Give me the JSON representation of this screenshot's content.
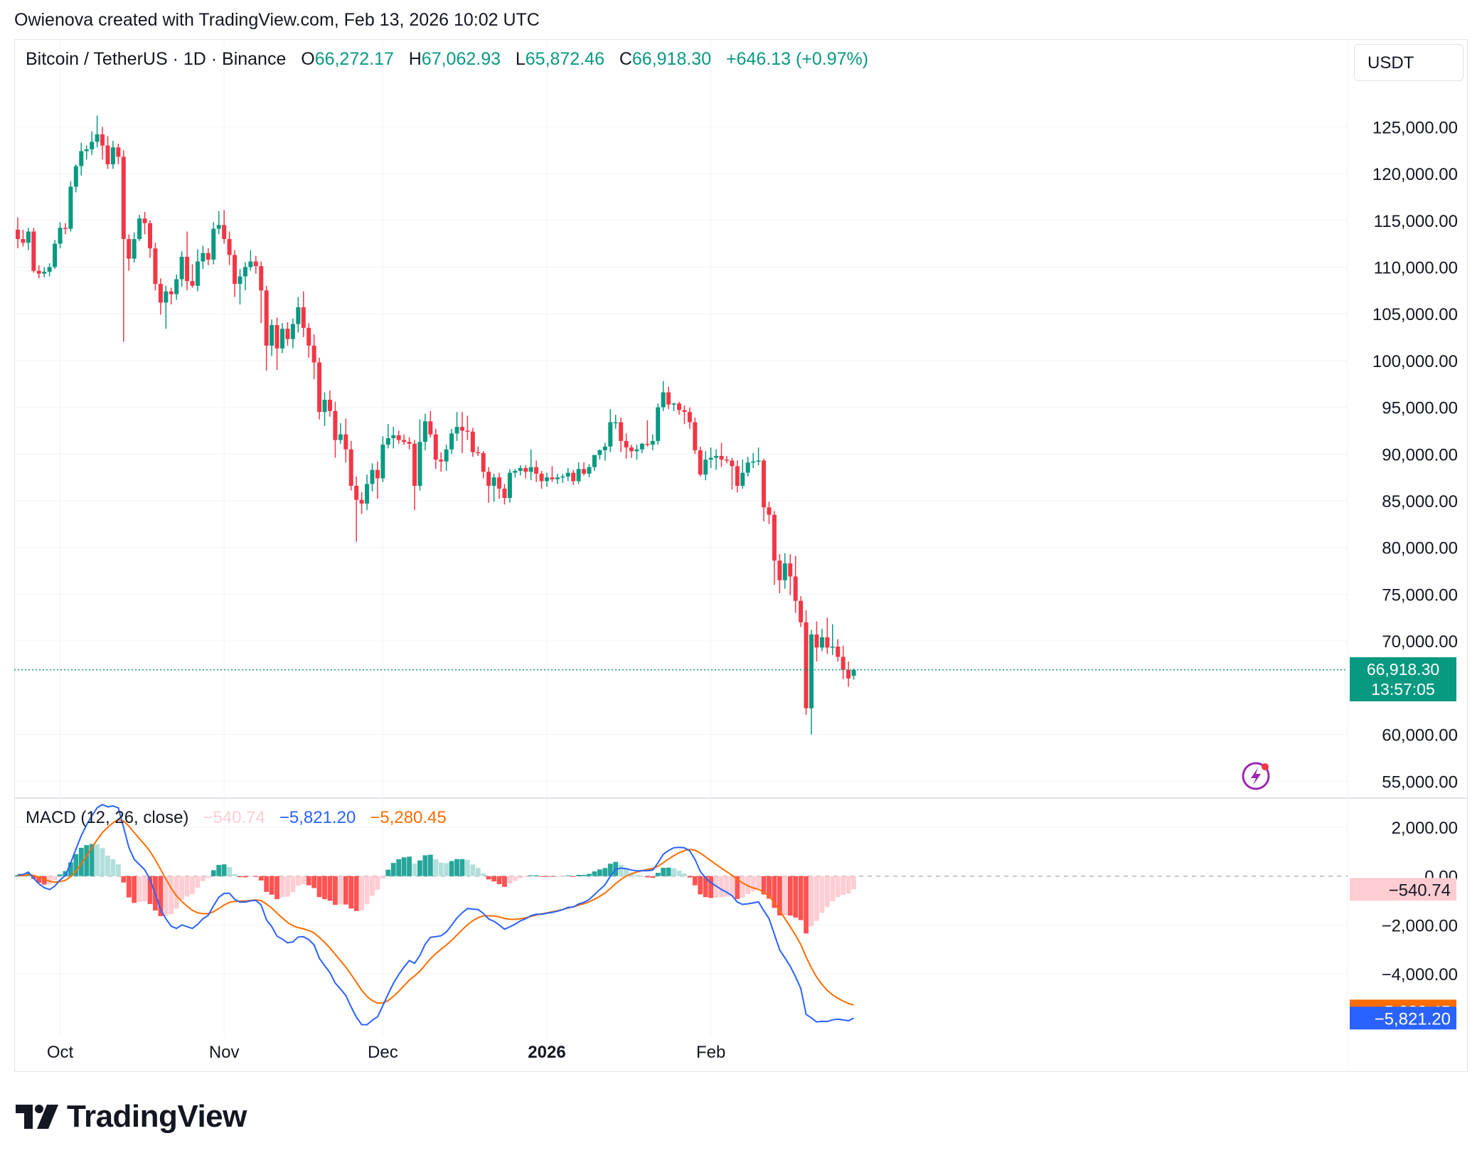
{
  "header": {
    "creator_text": "Owienova created with TradingView.com, Feb 13, 2026 10:02 UTC"
  },
  "symbol": {
    "name": "Bitcoin / TetherUS · 1D · Binance",
    "open_label": "O",
    "open": "66,272.17",
    "high_label": "H",
    "high": "67,062.93",
    "low_label": "L",
    "low": "65,872.46",
    "close_label": "C",
    "close": "66,918.30",
    "change": "+646.13 (+0.97%)"
  },
  "currency_button": "USDT",
  "last_price": {
    "price": "66,918.30",
    "countdown": "13:57:05"
  },
  "macd_legend": {
    "title": "MACD (12, 26, close)",
    "histogram": "−540.74",
    "macd": "−5,821.20",
    "signal": "−5,280.45"
  },
  "macd_tags": {
    "histogram": "−540.74",
    "signal": "−5,280.45",
    "macd": "−5,821.20"
  },
  "branding": {
    "name": "TradingView"
  },
  "colors": {
    "up": "#089981",
    "down": "#f23645",
    "macd_line": "#2962ff",
    "signal_line": "#ff6d00",
    "hist_up_strong": "#26a69a",
    "hist_up_weak": "#b2dfdb",
    "hist_down_strong": "#ff5252",
    "hist_down_weak": "#ffcdd2"
  },
  "chart_data": [
    {
      "type": "candlestick",
      "title": "Bitcoin / TetherUS · 1D · Binance",
      "x_axis_labels": [
        "Oct",
        "Nov",
        "Dec",
        "2026",
        "Feb"
      ],
      "y_axis_ticks": [
        "125,000.00",
        "120,000.00",
        "115,000.00",
        "110,000.00",
        "105,000.00",
        "100,000.00",
        "95,000.00",
        "90,000.00",
        "85,000.00",
        "80,000.00",
        "75,000.00",
        "70,000.00",
        "60,000.00",
        "55,000.00"
      ],
      "ylim": [
        53500,
        130200
      ],
      "first_date": "2025-09-23",
      "last_date": "2026-02-13",
      "grid": true,
      "candles_ohlc": [
        [
          114000,
          115300,
          112000,
          113000
        ],
        [
          113000,
          114000,
          112200,
          112600
        ],
        [
          112600,
          114200,
          111800,
          113800
        ],
        [
          113800,
          114200,
          109400,
          109600
        ],
        [
          109600,
          110200,
          108800,
          109300
        ],
        [
          109300,
          110000,
          108900,
          109500
        ],
        [
          109500,
          110400,
          109000,
          110000
        ],
        [
          110000,
          112900,
          109800,
          112500
        ],
        [
          112500,
          114800,
          112000,
          114200
        ],
        [
          114200,
          114700,
          113500,
          114100
        ],
        [
          114100,
          119200,
          113800,
          118600
        ],
        [
          118600,
          121000,
          118000,
          120800
        ],
        [
          120800,
          123300,
          119800,
          122400
        ],
        [
          122400,
          123000,
          121500,
          122600
        ],
        [
          122600,
          124500,
          122000,
          123400
        ],
        [
          123400,
          126200,
          122800,
          124200
        ],
        [
          124200,
          125000,
          121500,
          123000
        ],
        [
          123000,
          124000,
          120500,
          121000
        ],
        [
          121000,
          123500,
          120500,
          122800
        ],
        [
          122800,
          123200,
          121000,
          121800
        ],
        [
          121800,
          122500,
          102000,
          113000
        ],
        [
          113000,
          113500,
          109600,
          110900
        ],
        [
          110900,
          113700,
          110500,
          113000
        ],
        [
          113000,
          115600,
          112800,
          115200
        ],
        [
          115200,
          115900,
          113500,
          114700
        ],
        [
          114700,
          115000,
          111000,
          112000
        ],
        [
          112000,
          112600,
          107500,
          108200
        ],
        [
          108200,
          108800,
          104900,
          106200
        ],
        [
          106200,
          108000,
          103400,
          107400
        ],
        [
          107400,
          107800,
          106000,
          107100
        ],
        [
          107100,
          109200,
          106500,
          108700
        ],
        [
          108700,
          111700,
          107900,
          111100
        ],
        [
          111100,
          113800,
          107500,
          108500
        ],
        [
          108500,
          110300,
          107800,
          108000
        ],
        [
          108000,
          111900,
          107400,
          110600
        ],
        [
          110600,
          112300,
          109800,
          111500
        ],
        [
          111500,
          112000,
          110200,
          110800
        ],
        [
          110800,
          114800,
          110300,
          114100
        ],
        [
          114100,
          116000,
          113500,
          114500
        ],
        [
          114500,
          116100,
          112500,
          113000
        ],
        [
          113000,
          113800,
          110200,
          111300
        ],
        [
          111300,
          111800,
          106800,
          108200
        ],
        [
          108200,
          109800,
          106000,
          109000
        ],
        [
          109000,
          110500,
          107500,
          110000
        ],
        [
          110000,
          111800,
          109600,
          110600
        ],
        [
          110600,
          111200,
          109300,
          110100
        ],
        [
          110100,
          110600,
          104000,
          107500
        ],
        [
          107500,
          108000,
          98900,
          101600
        ],
        [
          101600,
          104400,
          100500,
          103800
        ],
        [
          103800,
          104600,
          99000,
          101300
        ],
        [
          101300,
          104000,
          100800,
          103400
        ],
        [
          103400,
          104100,
          101600,
          102300
        ],
        [
          102300,
          104500,
          101300,
          103900
        ],
        [
          103900,
          106800,
          103000,
          105700
        ],
        [
          105700,
          107400,
          102500,
          103500
        ],
        [
          103500,
          104000,
          100300,
          101600
        ],
        [
          101600,
          102800,
          98000,
          99800
        ],
        [
          99800,
          100300,
          93700,
          94500
        ],
        [
          94500,
          96600,
          93000,
          95800
        ],
        [
          95800,
          96800,
          94000,
          94600
        ],
        [
          94600,
          95600,
          89600,
          91500
        ],
        [
          91500,
          93300,
          91100,
          92100
        ],
        [
          92100,
          93800,
          89100,
          90500
        ],
        [
          90500,
          91400,
          86100,
          86600
        ],
        [
          86600,
          87600,
          80600,
          85100
        ],
        [
          85100,
          85900,
          83600,
          84700
        ],
        [
          84700,
          87800,
          84000,
          86800
        ],
        [
          86800,
          89000,
          86000,
          88300
        ],
        [
          88300,
          89200,
          85200,
          87400
        ],
        [
          87400,
          91900,
          87000,
          91000
        ],
        [
          91000,
          93200,
          90600,
          91700
        ],
        [
          91700,
          92900,
          90600,
          92000
        ],
        [
          92000,
          92500,
          91100,
          91500
        ],
        [
          91500,
          92100,
          91000,
          91300
        ],
        [
          91300,
          91800,
          90500,
          91100
        ],
        [
          91100,
          91500,
          84000,
          86600
        ],
        [
          86600,
          93700,
          86100,
          91300
        ],
        [
          91300,
          94300,
          90400,
          93500
        ],
        [
          93500,
          94600,
          91800,
          92100
        ],
        [
          92100,
          92700,
          88400,
          89400
        ],
        [
          89400,
          90200,
          88100,
          89200
        ],
        [
          89200,
          91000,
          88200,
          90500
        ],
        [
          90500,
          92700,
          90000,
          92200
        ],
        [
          92200,
          94500,
          91400,
          92900
        ],
        [
          92900,
          94500,
          90100,
          92500
        ],
        [
          92500,
          94100,
          91500,
          92400
        ],
        [
          92400,
          92800,
          89700,
          90200
        ],
        [
          90200,
          90800,
          89800,
          90100
        ],
        [
          90100,
          90300,
          87400,
          88100
        ],
        [
          88100,
          88600,
          84800,
          86600
        ],
        [
          86600,
          87900,
          84900,
          87500
        ],
        [
          87500,
          88000,
          85200,
          86300
        ],
        [
          86300,
          86800,
          84600,
          85300
        ],
        [
          85300,
          88400,
          84800,
          88000
        ],
        [
          88000,
          88400,
          87500,
          88200
        ],
        [
          88200,
          88800,
          87700,
          88500
        ],
        [
          88500,
          88800,
          87400,
          88100
        ],
        [
          88100,
          90500,
          87200,
          88600
        ],
        [
          88600,
          89300,
          87000,
          87900
        ],
        [
          87900,
          88200,
          86300,
          87100
        ],
        [
          87100,
          88000,
          86500,
          87500
        ],
        [
          87500,
          88700,
          87000,
          87300
        ],
        [
          87300,
          87900,
          86800,
          87500
        ],
        [
          87500,
          87900,
          86900,
          87600
        ],
        [
          87600,
          88500,
          87100,
          88000
        ],
        [
          88000,
          88300,
          86700,
          87100
        ],
        [
          87100,
          89100,
          86800,
          88400
        ],
        [
          88400,
          89100,
          87700,
          87900
        ],
        [
          87900,
          88900,
          87500,
          88600
        ],
        [
          88600,
          89700,
          88200,
          89900
        ],
        [
          89900,
          90500,
          89400,
          90400
        ],
        [
          90400,
          91200,
          89300,
          90800
        ],
        [
          90800,
          94800,
          90200,
          93400
        ],
        [
          93400,
          94200,
          92700,
          93400
        ],
        [
          93400,
          93900,
          90200,
          91400
        ],
        [
          91400,
          92200,
          89500,
          90700
        ],
        [
          90700,
          91000,
          89600,
          90300
        ],
        [
          90300,
          91000,
          89400,
          90500
        ],
        [
          90500,
          91200,
          90100,
          91100
        ],
        [
          91100,
          93600,
          90800,
          91000
        ],
        [
          91000,
          92100,
          90400,
          91400
        ],
        [
          91400,
          95400,
          91000,
          95000
        ],
        [
          95000,
          97800,
          94600,
          96600
        ],
        [
          96600,
          97200,
          94800,
          95300
        ],
        [
          95300,
          95500,
          94600,
          95400
        ],
        [
          95400,
          95600,
          94200,
          94700
        ],
        [
          94700,
          95200,
          93200,
          94500
        ],
        [
          94500,
          95000,
          92700,
          93400
        ],
        [
          93400,
          93900,
          90000,
          90400
        ],
        [
          90400,
          90800,
          87600,
          87800
        ],
        [
          87800,
          90300,
          87200,
          89400
        ],
        [
          89400,
          90700,
          88500,
          89600
        ],
        [
          89600,
          90500,
          88300,
          89800
        ],
        [
          89800,
          91200,
          88600,
          89400
        ],
        [
          89400,
          89800,
          89000,
          89300
        ],
        [
          89300,
          89600,
          86200,
          88700
        ],
        [
          88700,
          89300,
          85900,
          86600
        ],
        [
          86600,
          89400,
          86300,
          88000
        ],
        [
          88000,
          89700,
          87600,
          89100
        ],
        [
          89100,
          90100,
          88500,
          89200
        ],
        [
          89200,
          90700,
          88800,
          89300
        ],
        [
          89300,
          89500,
          82800,
          84300
        ],
        [
          84300,
          84900,
          82500,
          83500
        ],
        [
          83500,
          83900,
          76000,
          78600
        ],
        [
          78600,
          79300,
          75100,
          76500
        ],
        [
          76500,
          79400,
          75600,
          78300
        ],
        [
          78300,
          79300,
          74900,
          76900
        ],
        [
          76900,
          79100,
          73000,
          74300
        ],
        [
          74300,
          74800,
          71500,
          72000
        ],
        [
          72000,
          73300,
          62100,
          62800
        ],
        [
          62800,
          71200,
          60000,
          70700
        ],
        [
          70700,
          72100,
          67800,
          69300
        ],
        [
          69300,
          71300,
          68900,
          70400
        ],
        [
          70400,
          72500,
          68600,
          69300
        ],
        [
          69300,
          71800,
          68500,
          69400
        ],
        [
          69400,
          70200,
          67800,
          68300
        ],
        [
          68300,
          69500,
          65900,
          66900
        ],
        [
          66900,
          67800,
          65100,
          66000
        ],
        [
          66272.17,
          67062.93,
          65872.46,
          66918.3
        ]
      ]
    },
    {
      "type": "macd",
      "title": "MACD (12, 26, close)",
      "params": [
        12,
        26,
        "close"
      ],
      "y_axis_ticks": [
        "2,000.00",
        "0.00",
        "−2,000.00",
        "−4,000.00"
      ],
      "ylim": [
        -6600,
        3200
      ],
      "last_values": {
        "histogram": -540.74,
        "macd": -5821.2,
        "signal": -5280.45
      }
    }
  ]
}
